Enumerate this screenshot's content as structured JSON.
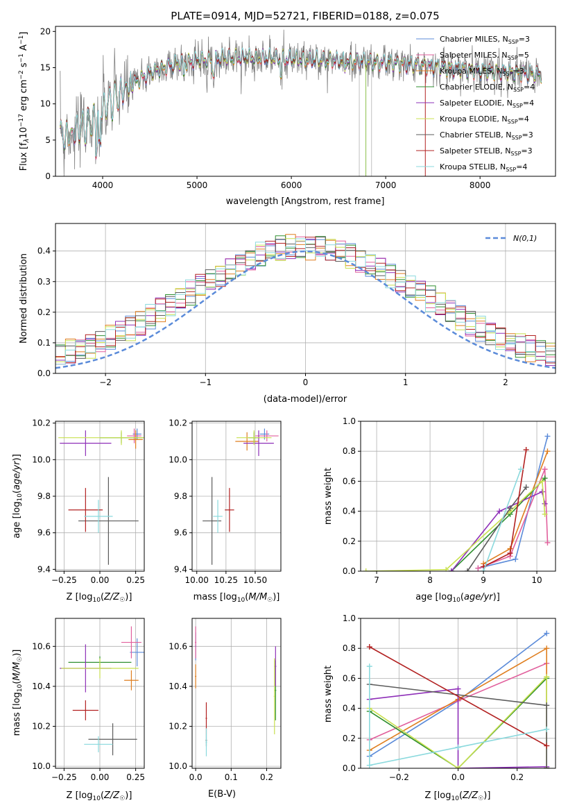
{
  "page_title": "PLATE=0914, MJD=52721, FIBERID=0188, z=0.075",
  "colors": {
    "series": [
      "#5b8bd9",
      "#e15f9c",
      "#df7e1f",
      "#2f8f2f",
      "#8e2fb8",
      "#c8e04f",
      "#5b5b5b",
      "#b22020",
      "#8ad9dd"
    ],
    "data_spectrum": "#7f7f7f",
    "gaussian": "#5b8bd9"
  },
  "legend_entries": [
    {
      "name": "Chabrier MILES",
      "n": "3"
    },
    {
      "name": "Salpeter MILES",
      "n": "5"
    },
    {
      "name": "Kroupa MILES",
      "n": "3"
    },
    {
      "name": "Chabrier ELODIE",
      "n": "4"
    },
    {
      "name": "Salpeter ELODIE",
      "n": "4"
    },
    {
      "name": "Kroupa ELODIE",
      "n": "4"
    },
    {
      "name": "Chabrier STELIB",
      "n": "3"
    },
    {
      "name": "Salpeter STELIB",
      "n": "3"
    },
    {
      "name": "Kroupa STELIB",
      "n": "4"
    }
  ],
  "chart_data": [
    {
      "id": "spectrum",
      "type": "line",
      "title": "PLATE=0914, MJD=52721, FIBERID=0188, z=0.075",
      "xlabel": "wavelength [Angstrom, rest frame]",
      "ylabel": "Flux [f_λ 10^-17 erg cm^-2 s^-1 A^-1]",
      "xlim": [
        3500,
        8800
      ],
      "ylim": [
        0,
        20.7
      ],
      "xticks": [
        4000,
        5000,
        6000,
        7000,
        8000
      ],
      "yticks": [
        0,
        5,
        10,
        15,
        20
      ],
      "continuum": {
        "x": [
          3550,
          3700,
          3850,
          3950,
          4050,
          4150,
          4300,
          4450,
          4600,
          4800,
          5000,
          5200,
          5400,
          5600,
          5800,
          6000,
          6200,
          6400,
          6600,
          6800,
          7000,
          7200,
          7400,
          7600,
          7800,
          8000,
          8200,
          8400,
          8700
        ],
        "y": [
          5.5,
          6.0,
          7.3,
          8.3,
          9.9,
          11.0,
          12.6,
          13.9,
          14.8,
          15.6,
          16.0,
          16.2,
          16.4,
          16.4,
          16.3,
          16.2,
          16.1,
          16.0,
          15.9,
          15.8,
          15.7,
          15.5,
          15.3,
          15.1,
          14.8,
          14.6,
          14.5,
          14.3,
          14.0
        ]
      }
    },
    {
      "id": "residuals",
      "type": "bar",
      "xlabel": "(data-model)/error",
      "ylabel": "Normed distribution",
      "xlim": [
        -2.5,
        2.5
      ],
      "ylim": [
        0,
        0.49
      ],
      "xticks": [
        -2,
        -1,
        0,
        1,
        2
      ],
      "yticks": [
        0.0,
        0.1,
        0.2,
        0.3,
        0.4
      ],
      "legend_label": "N(0,1)",
      "legend_position": "top-right",
      "grid": true
    },
    {
      "id": "age-vs-Z",
      "type": "scatter",
      "xlabel": "Z [log10(Z/Z☉)]",
      "ylabel": "age  [log10(age/yr)]",
      "xlim": [
        -0.31,
        0.31
      ],
      "ylim": [
        9.39,
        10.21
      ],
      "xticks": [
        -0.25,
        0.0,
        0.25
      ],
      "yticks": [
        9.4,
        9.6,
        9.8,
        10.0,
        10.2
      ],
      "points": [
        {
          "x": 0.26,
          "y": 10.14,
          "xerr": 0.03,
          "yerr": 0.03
        },
        {
          "x": 0.24,
          "y": 10.13,
          "xerr": 0.05,
          "yerr": 0.04
        },
        {
          "x": 0.25,
          "y": 10.11,
          "xerr": 0.05,
          "yerr": 0.05
        },
        {
          "x": 0.15,
          "y": 10.12,
          "xerr": 0.15,
          "yerr": 0.03
        },
        {
          "x": -0.1,
          "y": 10.09,
          "xerr": 0.18,
          "yerr": 0.07
        },
        {
          "x": 0.15,
          "y": 10.12,
          "xerr": 0.44,
          "yerr": 0.04
        },
        {
          "x": 0.06,
          "y": 9.665,
          "xerr": 0.21,
          "yerr": 0.24
        },
        {
          "x": -0.1,
          "y": 9.725,
          "xerr": 0.12,
          "yerr": 0.12
        },
        {
          "x": -0.01,
          "y": 9.69,
          "xerr": 0.1,
          "yerr": 0.09
        }
      ]
    },
    {
      "id": "age-vs-mass",
      "type": "scatter",
      "xlabel": "mass [log10(M/M☉)]",
      "ylabel": "",
      "xlim": [
        9.96,
        10.72
      ],
      "ylim": [
        9.39,
        10.21
      ],
      "xticks": [
        10.0,
        10.25,
        10.5
      ],
      "yticks": [
        9.4,
        9.6,
        9.8,
        10.0,
        10.2
      ],
      "points": [
        {
          "x": 10.58,
          "y": 10.14,
          "xerr": 0.04,
          "yerr": 0.03
        },
        {
          "x": 10.6,
          "y": 10.13,
          "xerr": 0.1,
          "yerr": 0.03
        },
        {
          "x": 10.43,
          "y": 10.1,
          "xerr": 0.1,
          "yerr": 0.05
        },
        {
          "x": 10.49,
          "y": 10.12,
          "xerr": 0.05,
          "yerr": 0.03
        },
        {
          "x": 10.53,
          "y": 10.09,
          "xerr": 0.13,
          "yerr": 0.07
        },
        {
          "x": 10.49,
          "y": 10.12,
          "xerr": 0.15,
          "yerr": 0.04
        },
        {
          "x": 10.13,
          "y": 9.665,
          "xerr": 0.08,
          "yerr": 0.24
        },
        {
          "x": 10.28,
          "y": 9.725,
          "xerr": 0.04,
          "yerr": 0.12
        },
        {
          "x": 10.18,
          "y": 9.69,
          "xerr": 0.04,
          "yerr": 0.09
        }
      ]
    },
    {
      "id": "weight-vs-age",
      "type": "line",
      "xlabel": "age  [log10(age/yr)]",
      "ylabel": "mass weight",
      "xlim": [
        6.7,
        10.35
      ],
      "ylim": [
        0,
        1
      ],
      "xticks": [
        7,
        8,
        9,
        10
      ],
      "yticks": [
        0.0,
        0.2,
        0.4,
        0.6,
        0.8,
        1.0
      ],
      "grid": true,
      "series": [
        {
          "x": [
            8.9,
            9.6,
            10.2
          ],
          "y": [
            0.02,
            0.08,
            0.9
          ]
        },
        {
          "x": [
            8.9,
            9.5,
            10.15,
            10.2
          ],
          "y": [
            0.02,
            0.1,
            0.68,
            0.19
          ]
        },
        {
          "x": [
            9.0,
            9.5,
            10.2
          ],
          "y": [
            0.05,
            0.15,
            0.8
          ]
        },
        {
          "x": [
            8.4,
            9.5,
            10.15
          ],
          "y": [
            0.0,
            0.38,
            0.62
          ]
        },
        {
          "x": [
            8.4,
            9.3,
            10.1,
            10.15
          ],
          "y": [
            0.0,
            0.4,
            0.53,
            0.45
          ]
        },
        {
          "x": [
            6.8,
            8.3,
            9.5,
            10.1,
            10.15
          ],
          "y": [
            0.0,
            0.01,
            0.4,
            0.6,
            0.38
          ]
        },
        {
          "x": [
            8.7,
            9.5,
            9.8
          ],
          "y": [
            0.0,
            0.42,
            0.56
          ]
        },
        {
          "x": [
            9.0,
            9.5,
            9.8
          ],
          "y": [
            0.03,
            0.12,
            0.81
          ]
        },
        {
          "x": [
            9.0,
            9.7
          ],
          "y": [
            0.0,
            0.68
          ]
        }
      ]
    },
    {
      "id": "mass-vs-Z",
      "type": "scatter",
      "xlabel": "Z [log10(Z/Z☉)]",
      "ylabel": "mass [log10(M/M☉)]",
      "xlim": [
        -0.31,
        0.31
      ],
      "ylim": [
        9.99,
        10.74
      ],
      "xticks": [
        -0.25,
        0.0,
        0.25
      ],
      "yticks": [
        10.0,
        10.2,
        10.4,
        10.6
      ],
      "points": [
        {
          "x": 0.26,
          "y": 10.57,
          "xerr": 0.05,
          "yerr": 0.07
        },
        {
          "x": 0.22,
          "y": 10.62,
          "xerr": 0.07,
          "yerr": 0.08
        },
        {
          "x": 0.22,
          "y": 10.43,
          "xerr": 0.05,
          "yerr": 0.05
        },
        {
          "x": 0.0,
          "y": 10.52,
          "xerr": 0.22,
          "yerr": 0.03
        },
        {
          "x": -0.1,
          "y": 10.49,
          "xerr": 0.18,
          "yerr": 0.12
        },
        {
          "x": 0.0,
          "y": 10.49,
          "xerr": 0.27,
          "yerr": 0.05
        },
        {
          "x": 0.09,
          "y": 10.135,
          "xerr": 0.17,
          "yerr": 0.08
        },
        {
          "x": -0.1,
          "y": 10.28,
          "xerr": 0.09,
          "yerr": 0.05
        },
        {
          "x": -0.01,
          "y": 10.11,
          "xerr": 0.1,
          "yerr": 0.04
        }
      ]
    },
    {
      "id": "mass-vs-EBV",
      "type": "scatter",
      "xlabel": "E(B-V)",
      "ylabel": "",
      "xlim": [
        -0.01,
        0.24
      ],
      "ylim": [
        9.99,
        10.74
      ],
      "xticks": [
        0.0,
        0.1,
        0.2
      ],
      "yticks": [
        10.0,
        10.2,
        10.4,
        10.6
      ],
      "points": [
        {
          "x": 0.0,
          "y": 10.6,
          "xerr": 0.002,
          "yerr": 0.07
        },
        {
          "x": 0.0,
          "y": 10.62,
          "xerr": 0.002,
          "yerr": 0.08
        },
        {
          "x": 0.0,
          "y": 10.45,
          "xerr": 0.002,
          "yerr": 0.06
        },
        {
          "x": 0.225,
          "y": 10.38,
          "xerr": 0.002,
          "yerr": 0.15
        },
        {
          "x": 0.225,
          "y": 10.5,
          "xerr": 0.002,
          "yerr": 0.1
        },
        {
          "x": 0.222,
          "y": 10.35,
          "xerr": 0.002,
          "yerr": 0.19
        },
        {
          "x": 0.03,
          "y": 10.13,
          "xerr": 0.002,
          "yerr": 0.03
        },
        {
          "x": 0.03,
          "y": 10.24,
          "xerr": 0.002,
          "yerr": 0.08
        },
        {
          "x": 0.03,
          "y": 10.12,
          "xerr": 0.002,
          "yerr": 0.07
        }
      ]
    },
    {
      "id": "weight-vs-Z",
      "type": "line",
      "xlabel": "Z [log10(Z/Z☉)]",
      "ylabel": "mass weight",
      "xlim": [
        -0.33,
        0.33
      ],
      "ylim": [
        0,
        1
      ],
      "xticks": [
        -0.2,
        0.0,
        0.2
      ],
      "yticks": [
        0.0,
        0.2,
        0.4,
        0.6,
        0.8,
        1.0
      ],
      "grid": true,
      "series": [
        {
          "x": [
            -0.3,
            0.0,
            0.3
          ],
          "y": [
            0.08,
            0.45,
            0.9
          ]
        },
        {
          "x": [
            -0.3,
            0.0,
            0.3,
            0.3
          ],
          "y": [
            0.19,
            0.45,
            0.7,
            0.0
          ]
        },
        {
          "x": [
            -0.3,
            0.0,
            0.3,
            0.3
          ],
          "y": [
            0.12,
            0.46,
            0.8,
            0.0
          ]
        },
        {
          "x": [
            -0.3,
            0.0,
            0.3,
            0.3
          ],
          "y": [
            0.38,
            0.0,
            0.6,
            0.0
          ]
        },
        {
          "x": [
            -0.3,
            0.0,
            0.0,
            0.3
          ],
          "y": [
            0.46,
            0.53,
            0.0,
            0.01
          ]
        },
        {
          "x": [
            -0.3,
            0.0,
            0.3,
            0.3
          ],
          "y": [
            0.4,
            0.0,
            0.61,
            0.0
          ]
        },
        {
          "x": [
            -0.3,
            0.3,
            0.3
          ],
          "y": [
            0.56,
            0.42,
            0.0
          ]
        },
        {
          "x": [
            -0.3,
            0.3
          ],
          "y": [
            0.81,
            0.15
          ]
        },
        {
          "x": [
            -0.3,
            -0.3,
            0.0,
            0.3
          ],
          "y": [
            0.68,
            0.02,
            0.14,
            0.26
          ]
        }
      ]
    }
  ]
}
